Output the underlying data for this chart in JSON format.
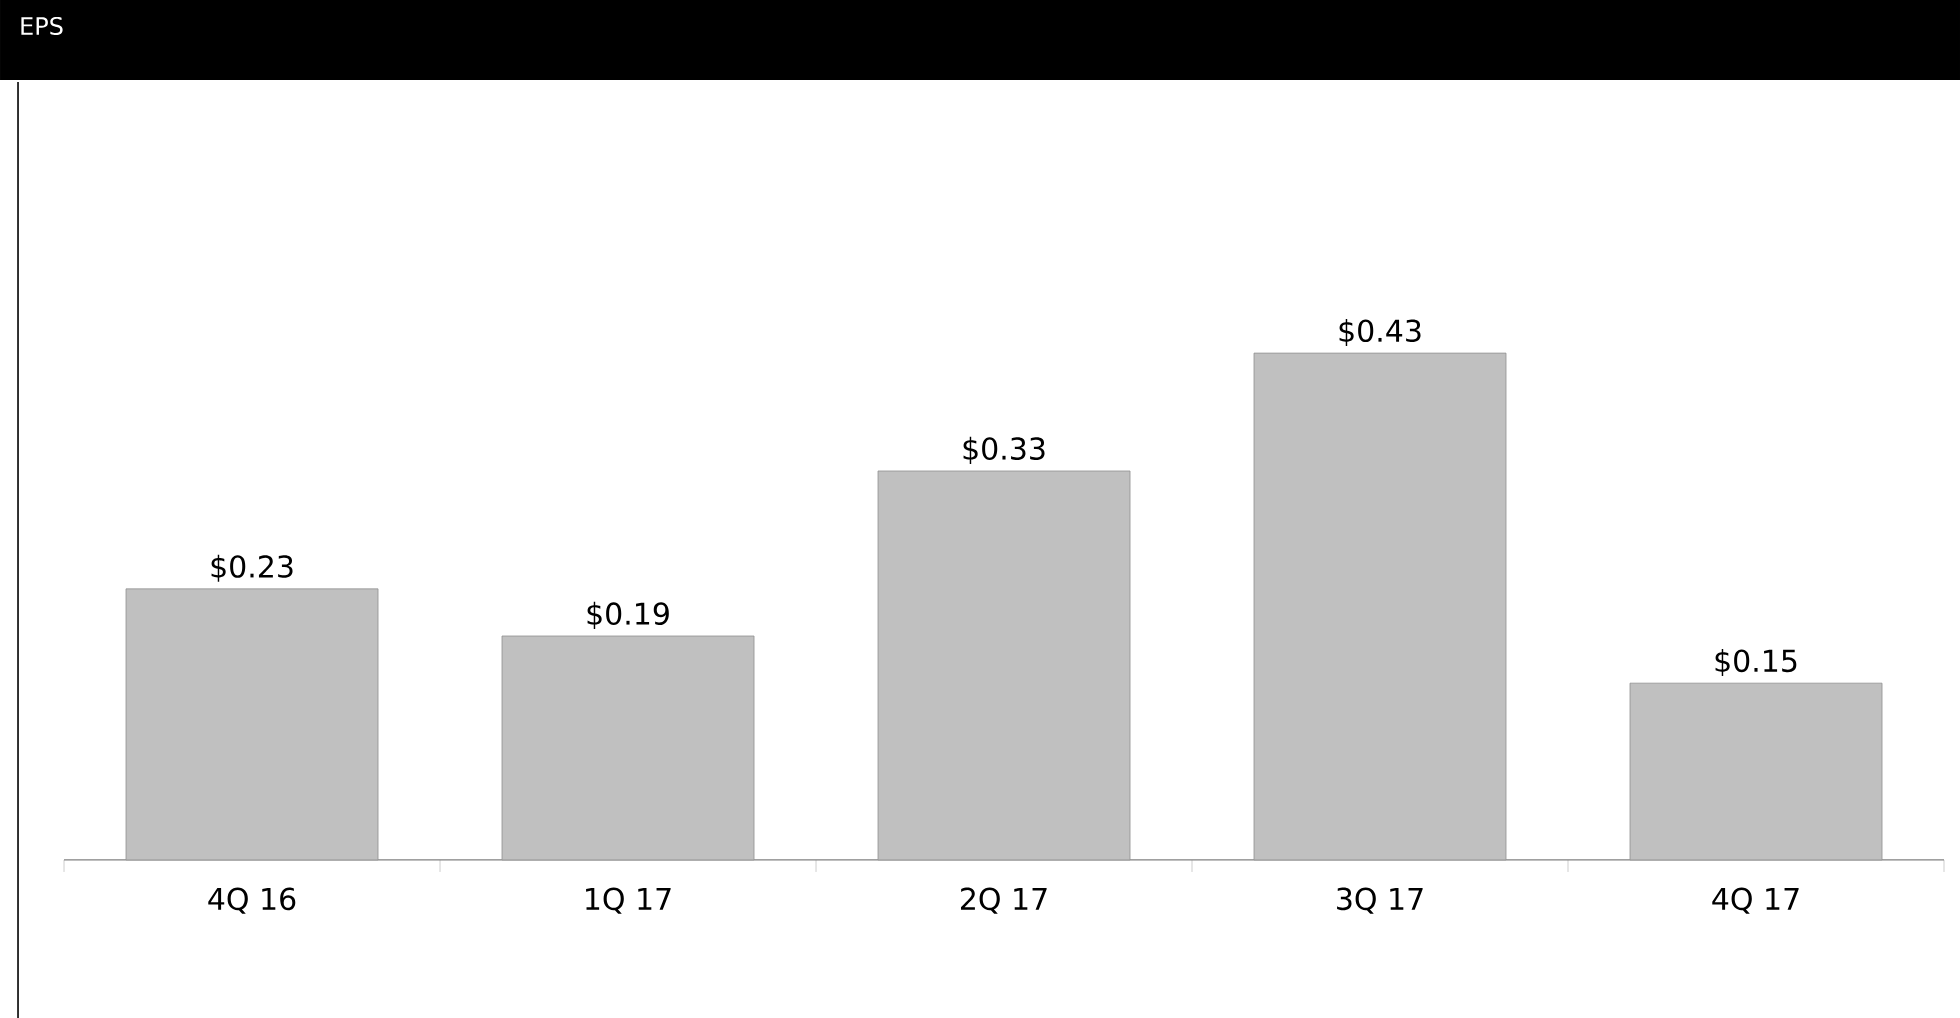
{
  "chart_data": {
    "type": "bar",
    "title": "EPS",
    "categories": [
      "4Q 16",
      "1Q 17",
      "2Q 17",
      "3Q 17",
      "4Q 17"
    ],
    "values": [
      0.23,
      0.19,
      0.33,
      0.43,
      0.15
    ],
    "value_labels": [
      "$0.23",
      "$0.19",
      "$0.33",
      "$0.43",
      "$0.15"
    ],
    "color": "#c0c0c0"
  }
}
